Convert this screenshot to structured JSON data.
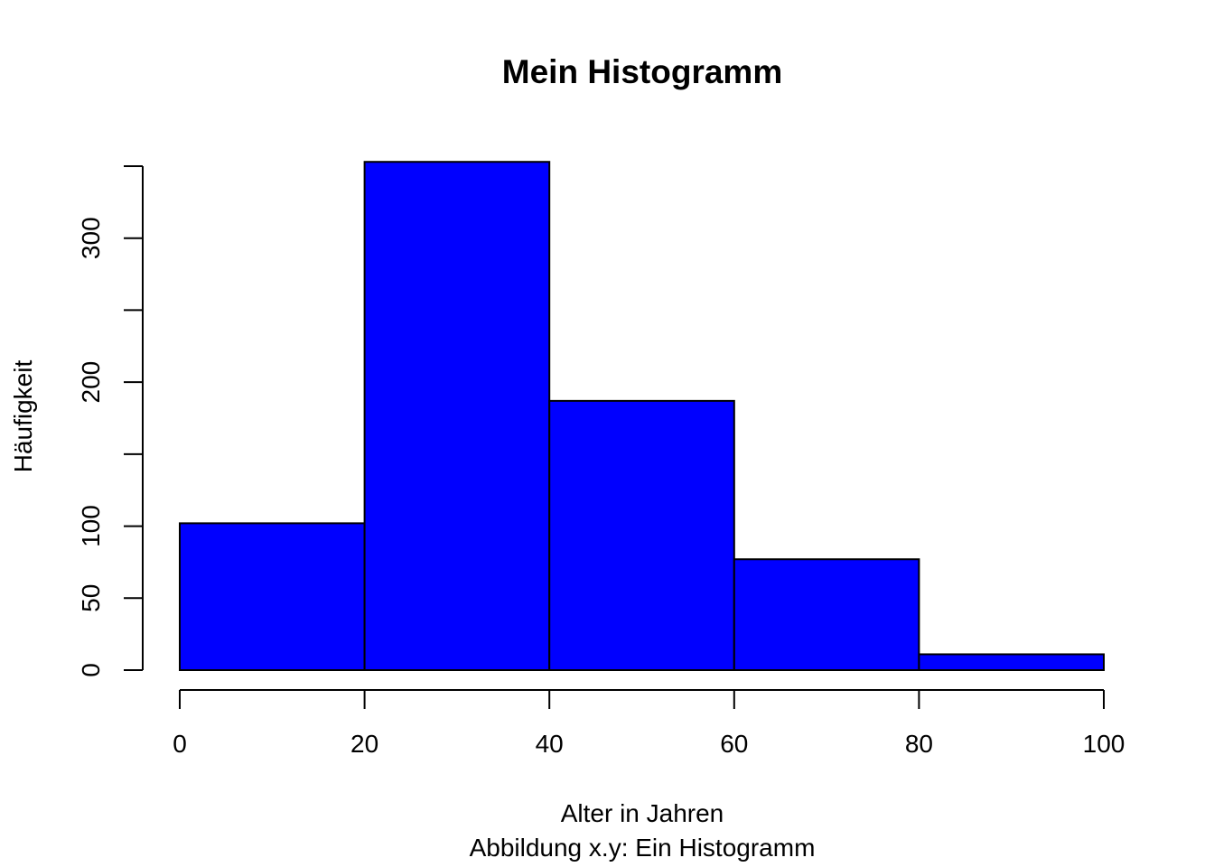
{
  "chart_data": {
    "type": "bar",
    "title": "Mein Histogramm",
    "xlabel": "Alter in Jahren",
    "ylabel": "Häufigkeit",
    "subtitle": "Abbildung x.y: Ein Histogramm",
    "bins": [
      {
        "from": 0,
        "to": 20,
        "count": 102
      },
      {
        "from": 20,
        "to": 40,
        "count": 353
      },
      {
        "from": 40,
        "to": 60,
        "count": 187
      },
      {
        "from": 60,
        "to": 80,
        "count": 77
      },
      {
        "from": 80,
        "to": 100,
        "count": 11
      }
    ],
    "x_ticks": [
      0,
      20,
      40,
      60,
      80,
      100
    ],
    "x_tick_labels": [
      "0",
      "20",
      "40",
      "60",
      "80",
      "100"
    ],
    "y_ticks": [
      0,
      50,
      100,
      150,
      200,
      250,
      300,
      350
    ],
    "y_tick_labels": [
      "0",
      "50",
      "100",
      "",
      "200",
      "",
      "300",
      ""
    ],
    "xlim": [
      0,
      100
    ],
    "ylim": [
      0,
      350
    ],
    "bar_color": "#0000ff",
    "grid": false,
    "legend": "none"
  }
}
